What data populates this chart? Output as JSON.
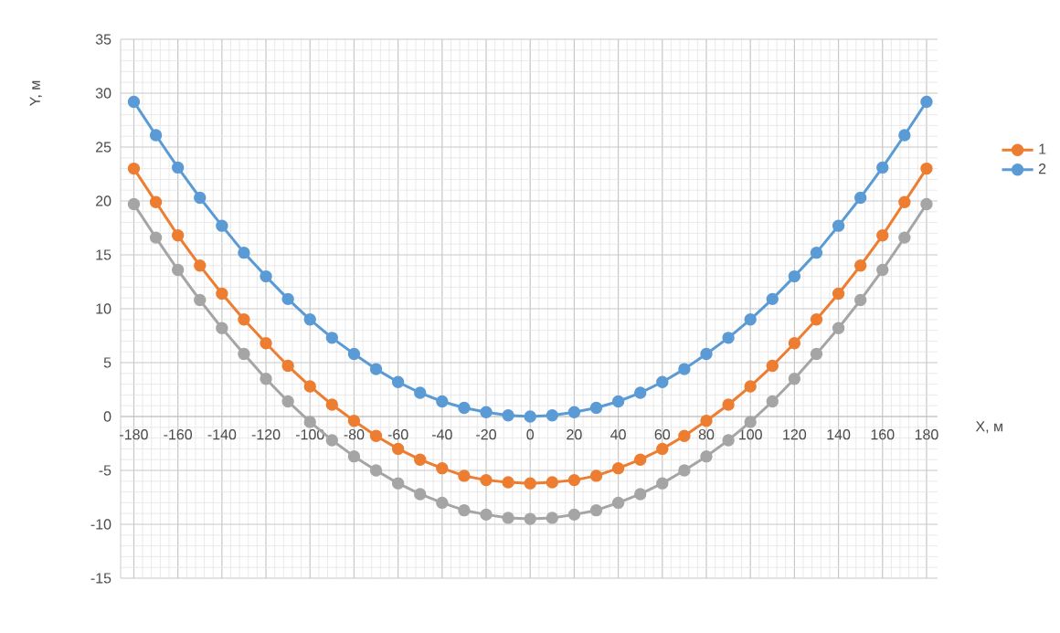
{
  "chart_data": {
    "type": "line",
    "xlabel": "X, м",
    "ylabel": "Y, м",
    "x": [
      -180,
      -170,
      -160,
      -150,
      -140,
      -130,
      -120,
      -110,
      -100,
      -90,
      -80,
      -70,
      -60,
      -50,
      -40,
      -30,
      -20,
      -10,
      0,
      10,
      20,
      30,
      40,
      50,
      60,
      70,
      80,
      90,
      100,
      110,
      120,
      130,
      140,
      150,
      160,
      170,
      180
    ],
    "series": [
      {
        "name": "1",
        "color": "#ed7d31",
        "values": [
          23.0,
          19.9,
          16.8,
          14.0,
          11.4,
          9.0,
          6.8,
          4.7,
          2.8,
          1.1,
          -0.4,
          -1.8,
          -3.0,
          -4.0,
          -4.8,
          -5.5,
          -5.9,
          -6.1,
          -6.2,
          -6.1,
          -5.9,
          -5.5,
          -4.8,
          -4.0,
          -3.0,
          -1.8,
          -0.4,
          1.1,
          2.8,
          4.7,
          6.8,
          9.0,
          11.4,
          14.0,
          16.8,
          19.9,
          23.0
        ]
      },
      {
        "name": "2",
        "color": "#5b9bd5",
        "values": [
          29.2,
          26.1,
          23.1,
          20.3,
          17.7,
          15.2,
          13.0,
          10.9,
          9.0,
          7.3,
          5.8,
          4.4,
          3.2,
          2.2,
          1.4,
          0.8,
          0.4,
          0.1,
          0.0,
          0.1,
          0.4,
          0.8,
          1.4,
          2.2,
          3.2,
          4.4,
          5.8,
          7.3,
          9.0,
          10.9,
          13.0,
          15.2,
          17.7,
          20.3,
          23.1,
          26.1,
          29.2
        ]
      },
      {
        "color": "#a5a5a5",
        "values": [
          19.7,
          16.6,
          13.6,
          10.8,
          8.2,
          5.8,
          3.5,
          1.4,
          -0.5,
          -2.2,
          -3.7,
          -5.0,
          -6.2,
          -7.2,
          -8.0,
          -8.7,
          -9.1,
          -9.4,
          -9.5,
          -9.4,
          -9.1,
          -8.7,
          -8.0,
          -7.2,
          -6.2,
          -5.0,
          -3.7,
          -2.2,
          -0.5,
          1.4,
          3.5,
          5.8,
          8.2,
          10.8,
          13.6,
          16.6,
          19.7
        ]
      }
    ],
    "xlim": [
      -186,
      185
    ],
    "xticks": [
      -180,
      -160,
      -140,
      -120,
      -100,
      -80,
      -60,
      -40,
      -20,
      0,
      20,
      40,
      60,
      80,
      100,
      120,
      140,
      160,
      180
    ],
    "ylim": [
      -15,
      35
    ],
    "yticks": [
      -15,
      -10,
      -5,
      0,
      5,
      10,
      15,
      20,
      25,
      30,
      35
    ],
    "grid": true,
    "legend": "right",
    "marker": "circle",
    "line_style": "solid"
  }
}
